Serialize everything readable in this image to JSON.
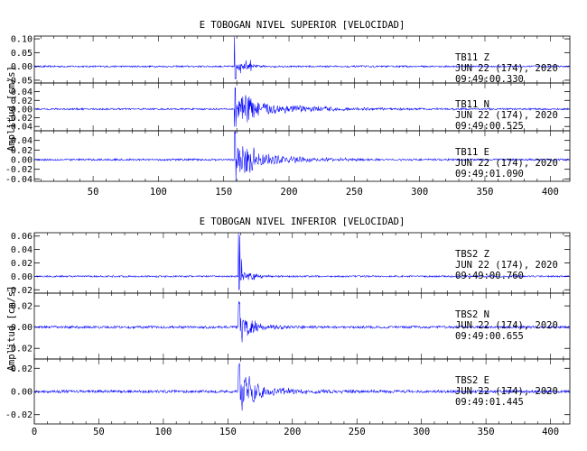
{
  "chart_data": [
    {
      "type": "line",
      "title": "E TOBOGAN NIVEL SUPERIOR [VELOCIDAD]",
      "ylabel": "Amplitud [cm/s]",
      "xlabel": "",
      "xlim": [
        5,
        415
      ],
      "x_ticks": [
        50,
        100,
        150,
        200,
        250,
        300,
        350,
        400
      ],
      "trace_color": "#0000ff",
      "onset_x": 158,
      "panels": [
        {
          "station": "TB11",
          "component": "Z",
          "date": "JUN 22 (174), 2020",
          "time": "09:49:00.330",
          "ylim": [
            -0.06,
            0.11
          ],
          "y_ticks": [
            -0.05,
            0.0,
            0.05,
            0.1
          ],
          "y_tick_labels": [
            "-0.05",
            "0.00",
            "0.05",
            "0.10"
          ],
          "peak_pos": 0.11,
          "peak_neg": -0.05,
          "coda_amp": 0.012,
          "coda_decay": 12,
          "noise": 0.003
        },
        {
          "station": "TB11",
          "component": "N",
          "date": "JUN 22 (174), 2020",
          "time": "09:49:00.525",
          "ylim": [
            -0.05,
            0.06
          ],
          "y_ticks": [
            -0.04,
            -0.02,
            0.0,
            0.02,
            0.04
          ],
          "y_tick_labels": [
            "-0.04",
            "-0.02",
            "0.00",
            "0.02",
            "0.04"
          ],
          "peak_pos": 0.05,
          "peak_neg": -0.045,
          "coda_amp": 0.022,
          "coda_decay": 45,
          "noise": 0.002
        },
        {
          "station": "TB11",
          "component": "E",
          "date": "JUN 22 (174), 2020",
          "time": "09:49:01.090",
          "ylim": [
            -0.045,
            0.06
          ],
          "y_ticks": [
            -0.04,
            -0.02,
            0.0,
            0.02,
            0.04
          ],
          "y_tick_labels": [
            "-0.04",
            "-0.02",
            "0.00",
            "0.02",
            "0.04"
          ],
          "peak_pos": 0.06,
          "peak_neg": -0.045,
          "coda_amp": 0.022,
          "coda_decay": 35,
          "noise": 0.002
        }
      ]
    },
    {
      "type": "line",
      "title": "E TOBOGAN NIVEL INFERIOR [VELOCIDAD]",
      "ylabel": "Amplitud [cm/s]",
      "xlabel": "",
      "xlim": [
        0,
        415
      ],
      "x_ticks": [
        0,
        50,
        100,
        150,
        200,
        250,
        300,
        350,
        400
      ],
      "trace_color": "#0000ff",
      "onset_x": 158,
      "panels": [
        {
          "station": "TBS2",
          "component": "Z",
          "date": "JUN 22 (174), 2020",
          "time": "09:49:00.760",
          "ylim": [
            -0.025,
            0.065
          ],
          "y_ticks": [
            -0.02,
            0.0,
            0.02,
            0.04,
            0.06
          ],
          "y_tick_labels": [
            "-0.02",
            "0.00",
            "0.02",
            "0.04",
            "0.06"
          ],
          "peak_pos": 0.065,
          "peak_neg": -0.02,
          "coda_amp": 0.006,
          "coda_decay": 12,
          "noise": 0.0012
        },
        {
          "station": "TBS2",
          "component": "N",
          "date": "JUN 22 (174), 2020",
          "time": "09:49:00.655",
          "ylim": [
            -0.03,
            0.032
          ],
          "y_ticks": [
            -0.02,
            0.0,
            0.02
          ],
          "y_tick_labels": [
            "-0.02",
            "0.00",
            "0.02"
          ],
          "peak_pos": 0.025,
          "peak_neg": -0.025,
          "coda_amp": 0.008,
          "coda_decay": 18,
          "noise": 0.0012
        },
        {
          "station": "TBS2",
          "component": "E",
          "date": "JUN 22 (174), 2020",
          "time": "09:49:01.445",
          "ylim": [
            -0.028,
            0.028
          ],
          "y_ticks": [
            -0.02,
            0.0,
            0.02
          ],
          "y_tick_labels": [
            "-0.02",
            "0.00",
            "0.02"
          ],
          "peak_pos": 0.025,
          "peak_neg": -0.025,
          "coda_amp": 0.008,
          "coda_decay": 30,
          "noise": 0.0012
        }
      ]
    }
  ]
}
